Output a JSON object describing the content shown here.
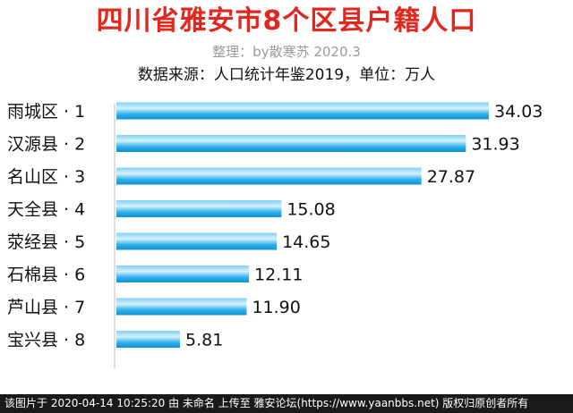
{
  "chart_data": {
    "type": "bar",
    "orientation": "horizontal",
    "title": "四川省雅安市8个区县户籍人口",
    "subtitle": "整理：by散寒苏 2020.3",
    "source_note": "数据来源：人口统计年鉴2019，单位：万人",
    "categories": [
      "雨城区 · 1",
      "汉源县 · 2",
      "名山区 · 3",
      "天全县 · 4",
      "荥经县 · 5",
      "石棉县 · 6",
      "芦山县 · 7",
      "宝兴县 · 8"
    ],
    "values": [
      34.03,
      31.93,
      27.87,
      15.08,
      14.65,
      12.11,
      11.9,
      5.81
    ],
    "value_labels": [
      "34.03",
      "31.93",
      "27.87",
      "15.08",
      "14.65",
      "12.11",
      "11.90",
      "5.81"
    ],
    "xlim": [
      0,
      34.03
    ],
    "bar_color": "#1aa7e8",
    "bar_highlight": "#bfe8fb",
    "grid": false,
    "legend": "none"
  },
  "footer": {
    "text": "该图片于 2020-04-14 10:25:20 由 未命名 上传至 雅安论坛(https://www.yaanbbs.net) 版权归原创者所有"
  },
  "colors": {
    "title": "#e0281e",
    "subtitle": "#9a9a9a",
    "footer_bg": "#1a1a1a"
  }
}
